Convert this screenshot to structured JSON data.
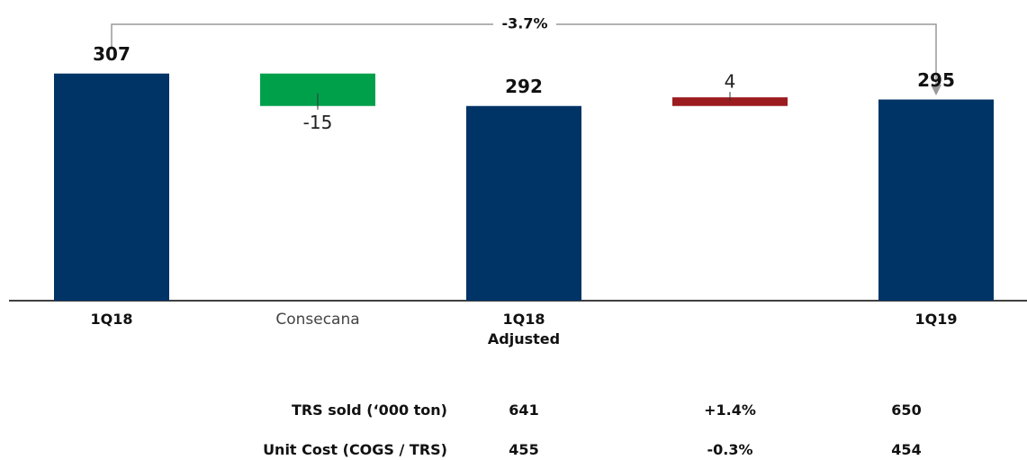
{
  "chart_data": {
    "type": "waterfall",
    "categories": [
      "1Q18",
      "Consecana",
      "1Q18 Adjusted",
      null,
      "1Q19"
    ],
    "values": [
      307,
      -15,
      292,
      4,
      295
    ],
    "measure": [
      "absolute",
      "relative",
      "absolute",
      "relative",
      "absolute"
    ],
    "colors": {
      "total": "#003466",
      "increase": "#9b1b1e",
      "decrease": "#00a04b"
    },
    "ylim": [
      202,
      341
    ],
    "annotation": "-3.7%"
  },
  "table": {
    "rows": [
      [
        "TRS sold (‘000 ton)",
        "641",
        "+1.4%",
        "650"
      ],
      [
        "Unit Cost (COGS / TRS)",
        "455",
        "-0.3%",
        "454"
      ]
    ]
  }
}
